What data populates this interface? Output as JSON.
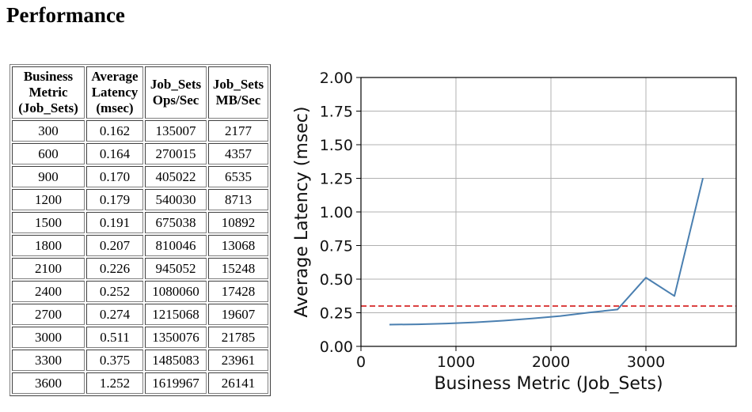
{
  "page": {
    "title": "Performance"
  },
  "table": {
    "headers": [
      [
        "Business",
        "Metric",
        "(Job_Sets)"
      ],
      [
        "Average",
        "Latency",
        "(msec)"
      ],
      [
        "Job_Sets",
        "Ops/Sec"
      ],
      [
        "Job_Sets",
        "MB/Sec"
      ]
    ],
    "rows": [
      [
        "300",
        "0.162",
        "135007",
        "2177"
      ],
      [
        "600",
        "0.164",
        "270015",
        "4357"
      ],
      [
        "900",
        "0.170",
        "405022",
        "6535"
      ],
      [
        "1200",
        "0.179",
        "540030",
        "8713"
      ],
      [
        "1500",
        "0.191",
        "675038",
        "10892"
      ],
      [
        "1800",
        "0.207",
        "810046",
        "13068"
      ],
      [
        "2100",
        "0.226",
        "945052",
        "15248"
      ],
      [
        "2400",
        "0.252",
        "1080060",
        "17428"
      ],
      [
        "2700",
        "0.274",
        "1215068",
        "19607"
      ],
      [
        "3000",
        "0.511",
        "1350076",
        "21785"
      ],
      [
        "3300",
        "0.375",
        "1485083",
        "23961"
      ],
      [
        "3600",
        "1.252",
        "1619967",
        "26141"
      ]
    ]
  },
  "chart_data": {
    "type": "line",
    "title": "",
    "xlabel": "Business Metric (Job_Sets)",
    "ylabel": "Average Latency (msec)",
    "xlim": [
      0,
      3950
    ],
    "ylim": [
      0,
      2.0
    ],
    "xticks": [
      0,
      1000,
      2000,
      3000
    ],
    "xtick_labels": [
      "0",
      "1000",
      "2000",
      "3000"
    ],
    "yticks": [
      0,
      0.25,
      0.5,
      0.75,
      1.0,
      1.25,
      1.5,
      1.75,
      2.0
    ],
    "ytick_labels": [
      "0.00",
      "0.25",
      "0.50",
      "0.75",
      "1.00",
      "1.25",
      "1.50",
      "1.75",
      "2.00"
    ],
    "grid": true,
    "series": [
      {
        "name": "Average Latency",
        "color": "#4a7fb0",
        "x": [
          300,
          600,
          900,
          1200,
          1500,
          1800,
          2100,
          2400,
          2700,
          3000,
          3300,
          3600
        ],
        "y": [
          0.162,
          0.164,
          0.17,
          0.179,
          0.191,
          0.207,
          0.226,
          0.252,
          0.274,
          0.511,
          0.375,
          1.252
        ]
      }
    ],
    "reference_line": {
      "y": 0.3,
      "color": "#d62728",
      "style": "dashed"
    }
  }
}
